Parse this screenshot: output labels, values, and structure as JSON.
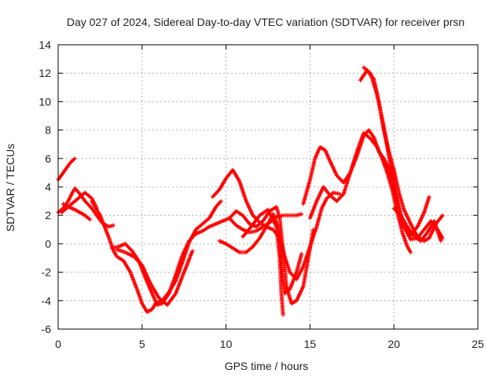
{
  "chart_data": {
    "type": "scatter",
    "title": "Day 027 of 2024, Sidereal Day-to-day VTEC variation (SDTVAR) for receiver prsn",
    "xlabel": "GPS time / hours",
    "ylabel": "SDTVAR / TECUs",
    "xlim": [
      0,
      25
    ],
    "ylim": [
      -6,
      14
    ],
    "xticks": [
      "0",
      "5",
      "10",
      "15",
      "20",
      "25"
    ],
    "yticks": [
      "-6",
      "-4",
      "-2",
      "0",
      "2",
      "4",
      "6",
      "8",
      "10",
      "12",
      "14"
    ],
    "grid": true,
    "marker": "plus",
    "color": "#ff0000",
    "series": [
      {
        "x": [
          0.0,
          0.3,
          0.6,
          0.8,
          1.0
        ],
        "y": [
          4.5,
          5.0,
          5.5,
          5.8,
          6.0
        ]
      },
      {
        "x": [
          0.0,
          0.3,
          0.6,
          0.8,
          1.0,
          1.3,
          1.6,
          2.0,
          2.3,
          2.6,
          3.0,
          3.3
        ],
        "y": [
          2.2,
          2.5,
          3.0,
          3.5,
          3.9,
          3.5,
          3.0,
          2.5,
          2.0,
          1.5,
          1.2,
          1.3
        ]
      },
      {
        "x": [
          0.2,
          0.5,
          0.8,
          1.0,
          1.3,
          1.6,
          2.0,
          2.3
        ],
        "y": [
          2.2,
          2.5,
          2.8,
          3.0,
          3.3,
          3.6,
          3.2,
          2.5
        ]
      },
      {
        "x": [
          0.3,
          0.6,
          1.0,
          1.3,
          1.6,
          1.9
        ],
        "y": [
          2.8,
          2.6,
          2.4,
          2.2,
          2.0,
          1.7
        ]
      },
      {
        "x": [
          2.0,
          2.5,
          3.0,
          3.3,
          3.5,
          3.9,
          4.3,
          4.7,
          5.0,
          5.3,
          5.6,
          5.8,
          6.2,
          6.6,
          7.0,
          7.4,
          7.8,
          8.2,
          8.6,
          9.0,
          9.4,
          9.7
        ],
        "y": [
          3.0,
          2.0,
          0.5,
          -0.5,
          -0.9,
          -1.2,
          -2.0,
          -3.2,
          -4.2,
          -4.8,
          -4.6,
          -4.2,
          -4.0,
          -3.4,
          -2.6,
          -1.3,
          0.1,
          1.0,
          1.4,
          1.8,
          2.6,
          3.0
        ]
      },
      {
        "x": [
          3.2,
          3.6,
          4.0,
          4.4,
          4.8,
          5.2,
          5.6,
          5.9,
          6.2,
          6.6,
          7.0,
          7.4,
          7.8,
          8.2,
          8.6,
          9.0,
          9.4,
          9.8,
          10.2,
          10.6,
          11.0,
          11.4,
          11.8,
          12.2,
          12.6,
          13.0,
          13.4,
          13.8,
          14.2,
          14.5
        ],
        "y": [
          -0.3,
          -0.2,
          0.0,
          -0.5,
          -1.2,
          -2.4,
          -3.5,
          -4.3,
          -4.2,
          -3.5,
          -2.2,
          -0.8,
          0.2,
          0.7,
          0.9,
          1.2,
          1.4,
          1.6,
          1.8,
          1.3,
          1.0,
          0.8,
          0.9,
          1.2,
          1.5,
          1.9,
          2.0,
          2.0,
          2.0,
          2.1
        ]
      },
      {
        "x": [
          3.5,
          4.0,
          4.5,
          5.0,
          5.5,
          6.0,
          6.5,
          7.0,
          7.5,
          8.0
        ],
        "y": [
          -0.4,
          -0.6,
          -0.9,
          -1.5,
          -2.8,
          -3.8,
          -4.3,
          -3.5,
          -2.0,
          -0.5
        ]
      },
      {
        "x": [
          9.2,
          9.6,
          10.0,
          10.4,
          10.8,
          11.2,
          11.6,
          12.0,
          12.4,
          12.8,
          13.2,
          13.5,
          13.8,
          14.2,
          14.6,
          15.0,
          15.4,
          15.7,
          16.0,
          16.4,
          16.8
        ],
        "y": [
          3.3,
          3.8,
          4.6,
          5.2,
          4.4,
          3.0,
          2.0,
          1.5,
          1.2,
          1.0,
          0.4,
          -0.9,
          -2.0,
          -2.5,
          -1.6,
          -0.2,
          1.2,
          2.5,
          3.2,
          3.6,
          3.5
        ]
      },
      {
        "x": [
          9.6,
          10.0,
          10.4,
          10.8,
          11.2,
          11.6,
          12.0,
          12.4,
          12.8,
          13.1,
          13.3,
          13.5,
          13.8,
          14.2,
          14.5
        ],
        "y": [
          0.2,
          0.0,
          -0.3,
          -0.6,
          -0.6,
          -0.2,
          0.4,
          1.2,
          2.1,
          1.2,
          -1.5,
          -3.5,
          -3.2,
          -2.0,
          -0.7
        ]
      },
      {
        "x": [
          10.2,
          10.6,
          11.0,
          11.4,
          11.8,
          12.2,
          12.6,
          13.0,
          13.2,
          13.4,
          13.6,
          13.9,
          14.2,
          14.6,
          14.9,
          15.2
        ],
        "y": [
          1.8,
          2.3,
          2.0,
          1.4,
          1.2,
          1.6,
          2.3,
          2.6,
          1.8,
          -0.5,
          -3.0,
          -4.2,
          -4.0,
          -3.0,
          -1.0,
          1.0
        ]
      },
      {
        "x": [
          11.0,
          11.5,
          12.0,
          12.5,
          13.0,
          13.2,
          13.3,
          13.4
        ],
        "y": [
          0.5,
          1.2,
          2.0,
          2.4,
          1.2,
          -1.0,
          -3.5,
          -5.0
        ]
      },
      {
        "x": [
          14.6,
          15.0,
          15.3,
          15.6,
          15.9,
          16.2,
          16.6,
          17.0,
          17.4,
          17.8,
          18.2,
          18.5,
          18.8,
          19.1,
          19.4,
          19.7,
          20.0,
          20.3,
          20.6,
          21.0,
          21.4,
          21.8,
          22.1
        ],
        "y": [
          2.8,
          4.5,
          6.0,
          6.8,
          6.6,
          5.8,
          4.8,
          4.3,
          5.0,
          6.2,
          7.6,
          8.0,
          7.5,
          6.5,
          6.0,
          5.3,
          4.0,
          2.5,
          1.2,
          0.6,
          1.2,
          2.2,
          3.3
        ]
      },
      {
        "x": [
          15.0,
          15.4,
          15.8,
          16.2,
          16.6,
          17.0,
          17.4,
          17.8,
          18.2,
          18.6,
          19.0,
          19.3,
          19.6,
          19.9,
          20.2,
          20.5,
          20.8,
          21.0
        ],
        "y": [
          1.8,
          3.0,
          4.0,
          3.4,
          3.0,
          3.5,
          5.0,
          6.5,
          7.8,
          7.4,
          6.8,
          6.0,
          5.0,
          3.8,
          2.2,
          0.8,
          -0.2,
          -0.6
        ]
      },
      {
        "x": [
          18.0,
          18.4,
          18.8,
          19.1,
          19.4,
          19.7,
          20.0,
          20.3,
          20.6,
          21.0,
          21.4,
          21.8,
          22.1,
          22.5,
          22.9
        ],
        "y": [
          11.5,
          12.2,
          11.6,
          10.0,
          8.0,
          6.5,
          5.2,
          3.6,
          2.4,
          1.4,
          0.5,
          0.2,
          0.4,
          1.4,
          2.0
        ]
      },
      {
        "x": [
          18.2,
          18.6,
          19.0,
          19.4,
          19.8,
          20.2,
          20.6,
          21.0,
          21.4,
          21.8,
          22.2,
          22.6,
          22.9
        ],
        "y": [
          12.4,
          12.0,
          10.5,
          8.2,
          5.5,
          3.0,
          1.2,
          0.3,
          0.4,
          1.0,
          1.6,
          1.0,
          0.4
        ]
      },
      {
        "x": [
          20.0,
          20.4,
          20.8,
          21.2,
          21.6,
          22.0,
          22.4,
          22.8
        ],
        "y": [
          2.5,
          2.0,
          1.2,
          0.5,
          0.2,
          0.8,
          1.6,
          0.2
        ]
      }
    ]
  }
}
